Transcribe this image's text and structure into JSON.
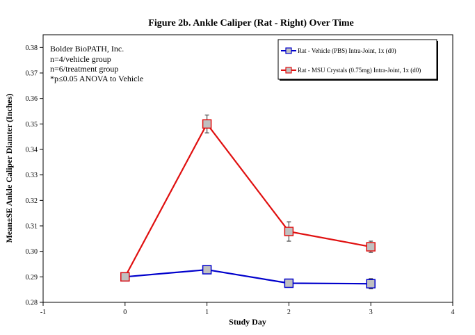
{
  "chart_data": {
    "type": "line",
    "title": "Figure 2b. Ankle Caliper (Rat - Right) Over Time",
    "xlabel": "Study Day",
    "ylabel": "Mean±SE Ankle Caliper Diamter (Inches)",
    "xlim": [
      -1,
      4
    ],
    "ylim": [
      0.28,
      0.385
    ],
    "x_ticks": [
      -1,
      0,
      1,
      2,
      3,
      4
    ],
    "y_ticks": [
      0.28,
      0.29,
      0.3,
      0.31,
      0.32,
      0.33,
      0.34,
      0.35,
      0.36,
      0.37,
      0.38
    ],
    "x_tick_labels": [
      "-1",
      "0",
      "1",
      "2",
      "3",
      "4"
    ],
    "y_tick_labels": [
      "0.28",
      "0.29",
      "0.30",
      "0.31",
      "0.32",
      "0.33",
      "0.34",
      "0.35",
      "0.36",
      "0.37",
      "0.38"
    ],
    "grid": false,
    "legend_position": "top-right",
    "annotations": [
      "Bolder BioPATH, Inc.",
      "n=4/vehicle group",
      "n=6/treatment group",
      "*p≤0.05 ANOVA to Vehicle"
    ],
    "series": [
      {
        "name": "Rat - Vehicle (PBS) Intra-Joint, 1x (d0)",
        "color": "#0000cc",
        "x": [
          0,
          1,
          2,
          3
        ],
        "y": [
          0.29,
          0.2928,
          0.2875,
          0.2873
        ],
        "err": [
          0.0005,
          0.0008,
          0.001,
          0.002
        ]
      },
      {
        "name": "Rat - MSU Crystals (0.75mg) Intra-Joint, 1x (d0)",
        "color": "#e01010",
        "x": [
          0,
          1,
          2,
          3
        ],
        "y": [
          0.29,
          0.35,
          0.3078,
          0.3018
        ],
        "err": [
          0.0005,
          0.0035,
          0.0038,
          0.0022
        ]
      }
    ]
  }
}
